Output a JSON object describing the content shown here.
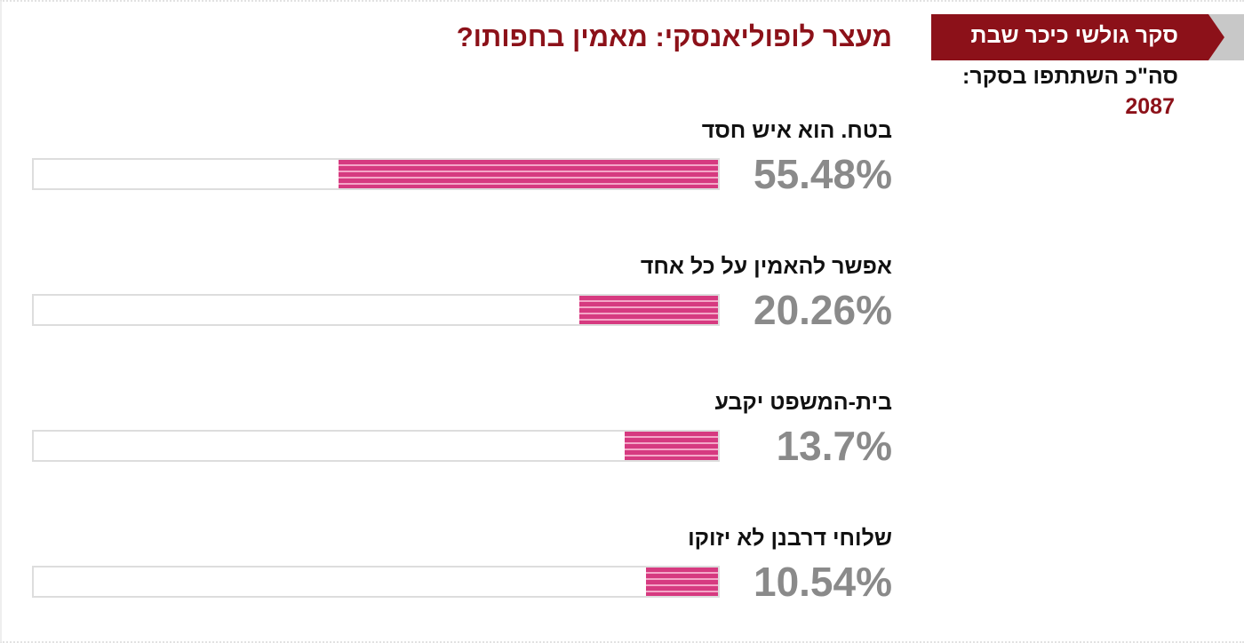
{
  "header": {
    "badge": "סקר גולשי כיכר שבת",
    "participants_label": "סה\"כ השתתפו בסקר:",
    "participants_count": "2087"
  },
  "poll": {
    "question": "מעצר לופוליאנסקי: מאמין בחפותו?",
    "options": [
      {
        "label": "בטח. הוא איש חסד",
        "value": 55.48,
        "value_label": "55.48%"
      },
      {
        "label": "אפשר להאמין על כל אחד",
        "value": 20.26,
        "value_label": "20.26%"
      },
      {
        "label": "בית-המשפט יקבע",
        "value": 13.7,
        "value_label": "13.7%"
      },
      {
        "label": "שלוחי דרבנן לא יזוקו",
        "value": 10.54,
        "value_label": "10.54%"
      }
    ]
  }
}
